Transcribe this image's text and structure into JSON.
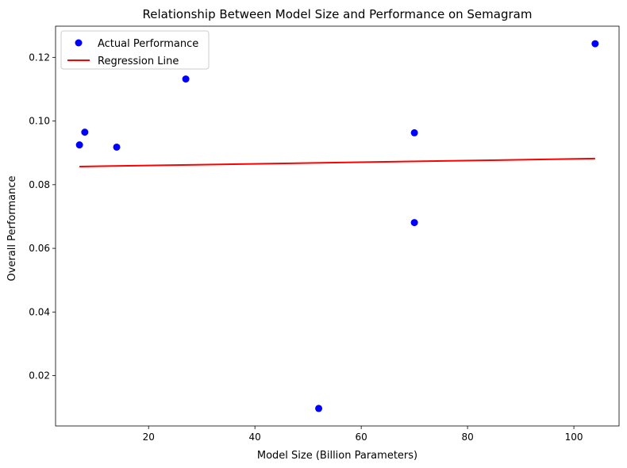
{
  "chart_data": {
    "type": "scatter",
    "title": "Relationship Between Model Size and Performance on Semagram",
    "xlabel": "Model Size (Billion Parameters)",
    "ylabel": "Overall Performance",
    "xlim": [
      2.5,
      108.5
    ],
    "ylim": [
      0.0042,
      0.1298
    ],
    "xticks": [
      20,
      40,
      60,
      80,
      100
    ],
    "yticks": [
      0.02,
      0.04,
      0.06,
      0.08,
      0.1,
      0.12
    ],
    "xtick_labels": [
      "20",
      "40",
      "60",
      "80",
      "100"
    ],
    "ytick_labels": [
      "0.02",
      "0.04",
      "0.06",
      "0.08",
      "0.10",
      "0.12"
    ],
    "grid": false,
    "legend_position": "top-left",
    "series": [
      {
        "name": "Actual Performance",
        "kind": "scatter",
        "color": "#0000ff",
        "x": [
          7,
          8,
          14,
          27,
          52,
          70,
          70,
          104
        ],
        "y": [
          0.0925,
          0.0965,
          0.0918,
          0.1132,
          0.0097,
          0.0963,
          0.0681,
          0.1243
        ]
      },
      {
        "name": "Regression Line",
        "kind": "line",
        "color": "#ff0000",
        "x": [
          7,
          104
        ],
        "y": [
          0.0857,
          0.0882
        ]
      }
    ]
  }
}
